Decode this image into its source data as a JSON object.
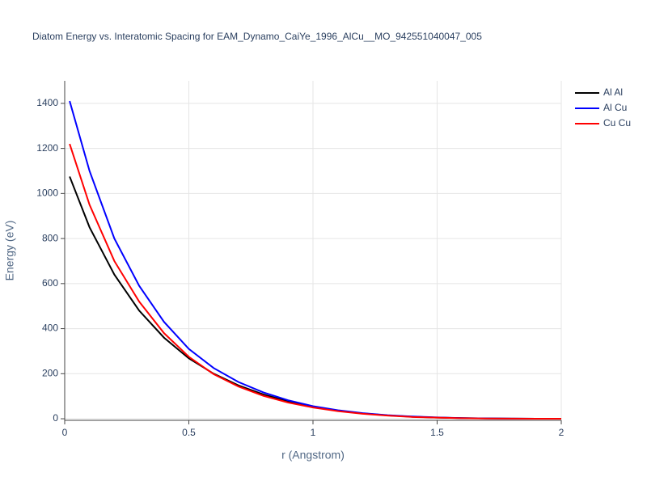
{
  "chart_data": {
    "type": "line",
    "title": "Diatom Energy vs. Interatomic Spacing for EAM_Dynamo_CaiYe_1996_AlCu__MO_942551040047_005",
    "x_label": "r (Angstrom)",
    "y_label": "Energy (eV)",
    "x": [
      0.02,
      0.1,
      0.2,
      0.3,
      0.4,
      0.5,
      0.6,
      0.7,
      0.8,
      0.9,
      1.0,
      1.1,
      1.2,
      1.3,
      1.4,
      1.5,
      1.6,
      1.7,
      1.8,
      1.9,
      2.0
    ],
    "series": [
      {
        "name": "Al Al",
        "color": "#000000",
        "values": [
          1075,
          850,
          640,
          480,
          360,
          268,
          200,
          148,
          108,
          77,
          53,
          36,
          24,
          15,
          9,
          5,
          3,
          1.5,
          0.7,
          0.2,
          0
        ]
      },
      {
        "name": "Al Cu",
        "color": "#0000ff",
        "values": [
          1410,
          1100,
          800,
          590,
          430,
          310,
          225,
          163,
          117,
          82,
          56,
          38,
          25,
          16,
          10,
          6,
          3,
          1.5,
          0.7,
          0.2,
          0
        ]
      },
      {
        "name": "Cu Cu",
        "color": "#ff0000",
        "values": [
          1220,
          950,
          700,
          520,
          380,
          275,
          198,
          143,
          102,
          72,
          50,
          34,
          22,
          14,
          8,
          5,
          2.5,
          1.2,
          0.5,
          0.1,
          0
        ]
      }
    ],
    "xlim": [
      0,
      2
    ],
    "xticks": [
      0,
      0.5,
      1,
      1.5,
      2
    ],
    "ylim": [
      -7,
      1500
    ],
    "yticks": [
      0,
      200,
      400,
      600,
      800,
      1000,
      1200,
      1400
    ],
    "grid": true,
    "legend": "right"
  }
}
